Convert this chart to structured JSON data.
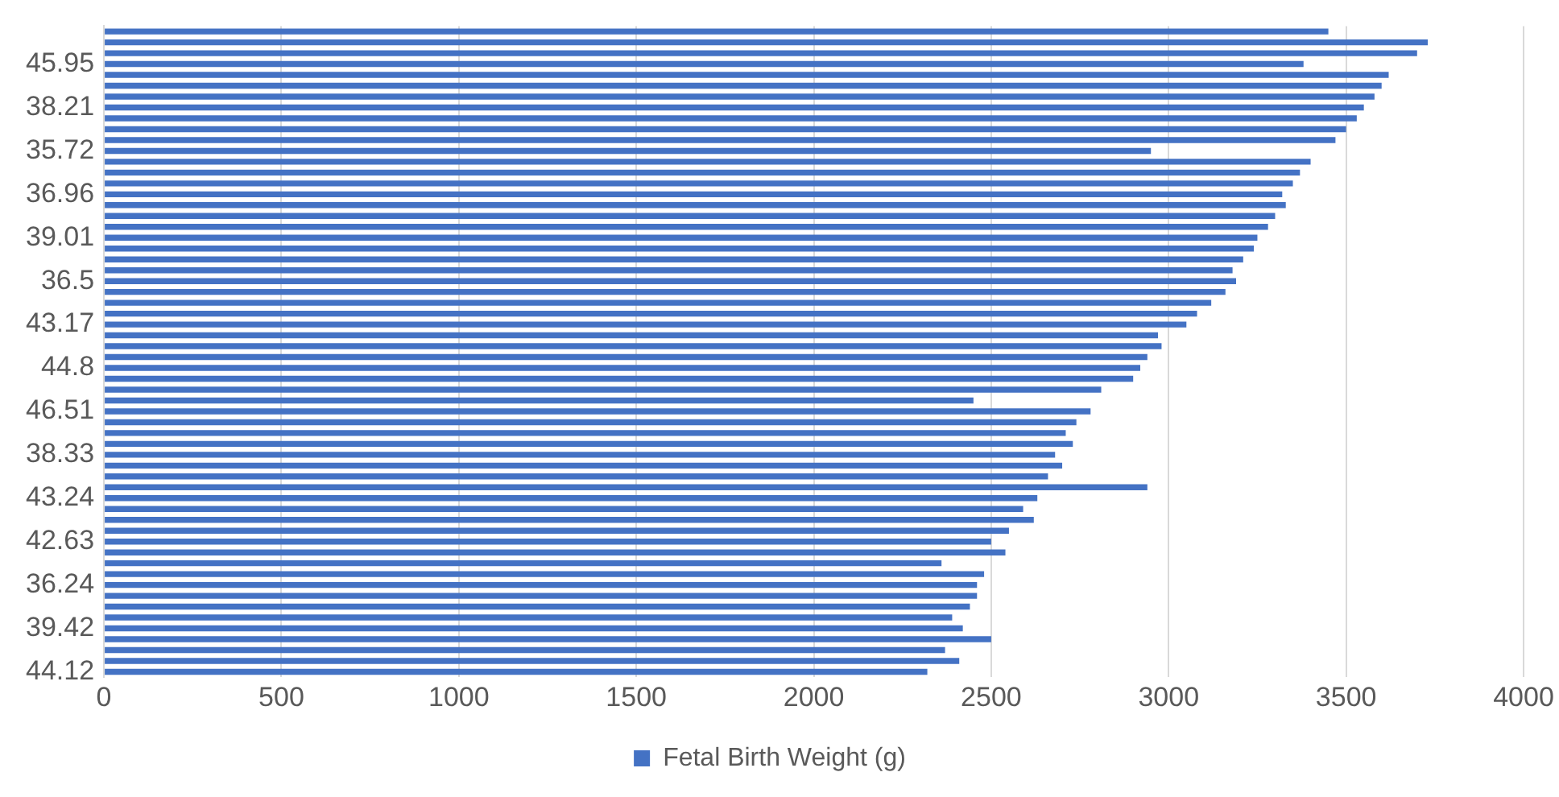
{
  "chart_data": {
    "type": "bar",
    "orientation": "horizontal",
    "categories": [
      null,
      null,
      null,
      "45.95",
      null,
      null,
      null,
      "38.21",
      null,
      null,
      null,
      "35.72",
      null,
      null,
      null,
      "36.96",
      null,
      null,
      null,
      "39.01",
      null,
      null,
      null,
      "36.5",
      null,
      null,
      null,
      "43.17",
      null,
      null,
      null,
      "44.8",
      null,
      null,
      null,
      "46.51",
      null,
      null,
      null,
      "38.33",
      null,
      null,
      null,
      "43.24",
      null,
      null,
      null,
      "42.63",
      null,
      null,
      null,
      "36.24",
      null,
      null,
      null,
      "39.42",
      null,
      null,
      null,
      "44.12"
    ],
    "series": [
      {
        "name": "Fetal Birth Weight (g)",
        "color": "#4472c4",
        "values": [
          3450,
          3730,
          3700,
          3380,
          3620,
          3600,
          3580,
          3550,
          3530,
          3500,
          3470,
          2950,
          3400,
          3370,
          3350,
          3320,
          3330,
          3300,
          3280,
          3250,
          3240,
          3210,
          3180,
          3190,
          3160,
          3120,
          3080,
          3050,
          2970,
          2980,
          2940,
          2920,
          2900,
          2810,
          2450,
          2780,
          2740,
          2710,
          2730,
          2680,
          2700,
          2660,
          2940,
          2630,
          2590,
          2620,
          2550,
          2500,
          2540,
          2360,
          2480,
          2460,
          2460,
          2440,
          2390,
          2420,
          2500,
          2370,
          2410,
          2320
        ]
      }
    ],
    "xlim": [
      0,
      4000
    ],
    "xticks": [
      0,
      500,
      1000,
      1500,
      2000,
      2500,
      3000,
      3500,
      4000
    ],
    "grid": "x",
    "legend": "bottom"
  }
}
